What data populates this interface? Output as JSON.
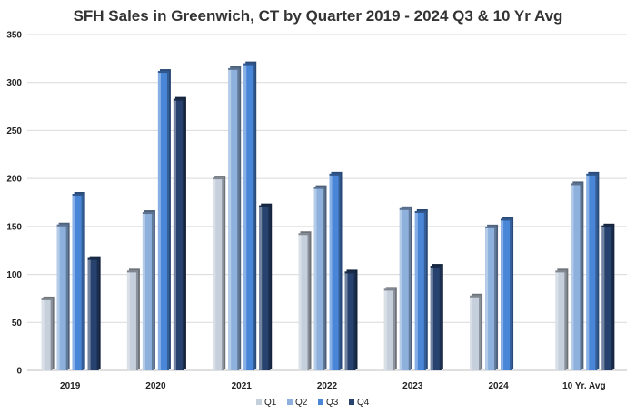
{
  "chart_data": {
    "type": "bar",
    "title": "SFH Sales in Greenwich, CT by Quarter 2019 - 2024 Q3 & 10 Yr Avg",
    "xlabel": "",
    "ylabel": "",
    "ylim": [
      0,
      350
    ],
    "yticks": [
      0,
      50,
      100,
      150,
      200,
      250,
      300,
      350
    ],
    "grid": true,
    "legend_position": "bottom",
    "categories": [
      "2019",
      "2020",
      "2021",
      "2022",
      "2023",
      "2024",
      "10 Yr. Avg"
    ],
    "series": [
      {
        "name": "Q1",
        "color": "#c6cfdc",
        "values": [
          75,
          104,
          201,
          143,
          85,
          78,
          104
        ]
      },
      {
        "name": "Q2",
        "color": "#8db0dd",
        "values": [
          152,
          165,
          315,
          191,
          169,
          150,
          195
        ]
      },
      {
        "name": "Q3",
        "color": "#4a86d8",
        "values": [
          184,
          312,
          320,
          205,
          166,
          158,
          205
        ]
      },
      {
        "name": "Q4",
        "color": "#27426e",
        "values": [
          117,
          283,
          172,
          103,
          109,
          null,
          151
        ]
      }
    ]
  }
}
